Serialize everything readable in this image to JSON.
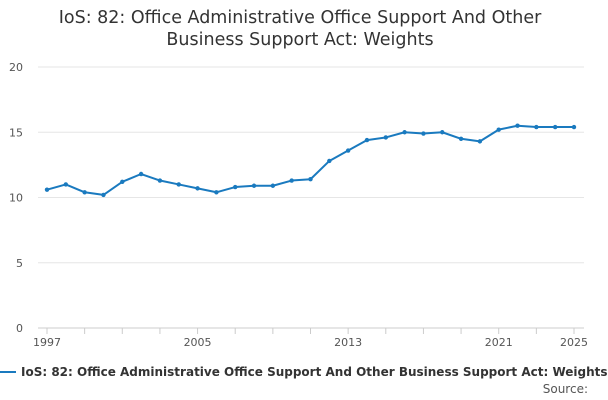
{
  "colors": {
    "series": "#1a7abf",
    "grid": "#e6e6e6",
    "axis": "#cccccc"
  },
  "legend": {
    "text": "IoS: 82: Office Administrative Office Support And Other Business Support Act: Weights"
  },
  "source": {
    "label": "Source:"
  },
  "chart_data": {
    "type": "line",
    "title_lines": [
      "IoS: 82: Office Administrative Office Support And Other",
      "Business Support Act: Weights"
    ],
    "xlabel": "",
    "ylabel": "",
    "xlim": [
      1997,
      2025
    ],
    "ylim": [
      0,
      20
    ],
    "x_ticks": [
      1997,
      2005,
      2013,
      2021,
      2025
    ],
    "y_ticks": [
      0,
      5,
      10,
      15,
      20
    ],
    "grid": "horizontal",
    "legend_position": "bottom",
    "series": [
      {
        "name": "IoS: 82: Office Administrative Office Support And Other Business Support Act: Weights",
        "x": [
          1997,
          1998,
          1999,
          2000,
          2001,
          2002,
          2003,
          2004,
          2005,
          2006,
          2007,
          2008,
          2009,
          2010,
          2011,
          2012,
          2013,
          2014,
          2015,
          2016,
          2017,
          2018,
          2019,
          2020,
          2021,
          2022,
          2023,
          2024,
          2025
        ],
        "values": [
          10.6,
          11.0,
          10.4,
          10.2,
          11.2,
          11.8,
          11.3,
          11.0,
          10.7,
          10.4,
          10.8,
          10.9,
          10.9,
          11.3,
          11.4,
          12.8,
          13.6,
          14.4,
          14.6,
          15.0,
          14.9,
          15.0,
          14.5,
          14.3,
          15.2,
          15.5,
          15.4,
          15.4,
          15.4
        ]
      }
    ]
  }
}
